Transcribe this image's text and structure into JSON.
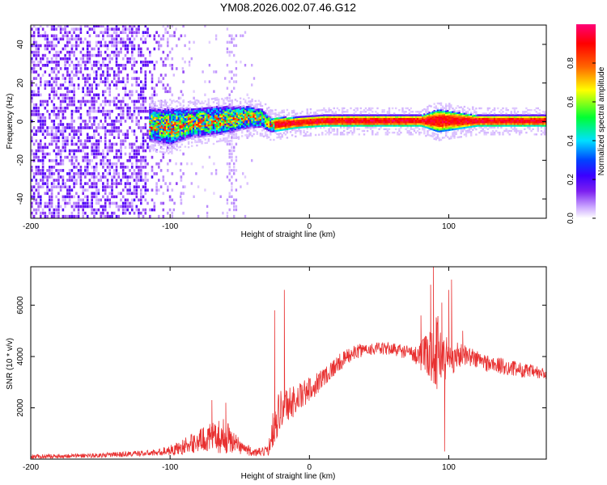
{
  "figure": {
    "title": "YM08.2026.002.07.46.G12"
  },
  "chart_data": [
    {
      "type": "heatmap",
      "panel": "spectrogram",
      "xlabel": "Height of straight line (km)",
      "ylabel": "Frequency (Hz)",
      "xlim": [
        -200,
        170
      ],
      "ylim": [
        -50,
        50
      ],
      "xticks": [
        "-200",
        "-100",
        "0",
        "100"
      ],
      "yticks": [
        "-40",
        "-20",
        "0",
        "20",
        "40"
      ],
      "colorbar": {
        "label": "Normalized spectral amplitude",
        "range": [
          0,
          1
        ],
        "ticks": [
          "0.0",
          "0.2",
          "0.4",
          "0.6",
          "0.8"
        ],
        "colormap": [
          "#ffffff",
          "#c9a4ff",
          "#7c1ff0",
          "#3a00ff",
          "#0044ff",
          "#00e0ff",
          "#00ff33",
          "#ffff00",
          "#ff6600",
          "#ff0000",
          "#ff0077"
        ]
      },
      "ridge": [
        {
          "x": -115,
          "freq": -2.0,
          "width": 9
        },
        {
          "x": -100,
          "freq": -3.0,
          "width": 10
        },
        {
          "x": -85,
          "freq": -1.0,
          "width": 8
        },
        {
          "x": -70,
          "freq": 0.0,
          "width": 8
        },
        {
          "x": -55,
          "freq": 1.0,
          "width": 7
        },
        {
          "x": -45,
          "freq": 2.0,
          "width": 6
        },
        {
          "x": -35,
          "freq": 1.5,
          "width": 5
        },
        {
          "x": -28,
          "freq": -2.0,
          "width": 4
        },
        {
          "x": -10,
          "freq": -1.0,
          "width": 3
        },
        {
          "x": 10,
          "freq": 0.0,
          "width": 3
        },
        {
          "x": 80,
          "freq": 0.0,
          "width": 3
        },
        {
          "x": 92,
          "freq": 0.0,
          "width": 6
        },
        {
          "x": 120,
          "freq": 0.0,
          "width": 3
        },
        {
          "x": 170,
          "freq": 0.0,
          "width": 3
        }
      ],
      "noise_region": {
        "x_start": -200,
        "x_end": -98,
        "density": "high"
      }
    },
    {
      "type": "line",
      "panel": "snr",
      "xlabel": "Height of straight line (km)",
      "ylabel": "SNR (10 * v/v)",
      "xlim": [
        -200,
        170
      ],
      "ylim": [
        0,
        7500
      ],
      "xticks": [
        "-200",
        "-100",
        "0",
        "100"
      ],
      "yticks": [
        "2000",
        "4000",
        "6000"
      ],
      "line_color": "#e83030",
      "envelope": [
        {
          "x": -200,
          "y": 100,
          "spread": 80
        },
        {
          "x": -150,
          "y": 150,
          "spread": 90
        },
        {
          "x": -110,
          "y": 250,
          "spread": 120
        },
        {
          "x": -95,
          "y": 400,
          "spread": 250
        },
        {
          "x": -75,
          "y": 800,
          "spread": 500
        },
        {
          "x": -60,
          "y": 900,
          "spread": 700
        },
        {
          "x": -50,
          "y": 500,
          "spread": 300
        },
        {
          "x": -40,
          "y": 250,
          "spread": 150
        },
        {
          "x": -30,
          "y": 300,
          "spread": 200
        },
        {
          "x": -25,
          "y": 1500,
          "spread": 900
        },
        {
          "x": -20,
          "y": 2000,
          "spread": 800
        },
        {
          "x": -10,
          "y": 2300,
          "spread": 600
        },
        {
          "x": 0,
          "y": 2700,
          "spread": 500
        },
        {
          "x": 10,
          "y": 3200,
          "spread": 400
        },
        {
          "x": 20,
          "y": 3700,
          "spread": 350
        },
        {
          "x": 30,
          "y": 4100,
          "spread": 300
        },
        {
          "x": 40,
          "y": 4300,
          "spread": 250
        },
        {
          "x": 60,
          "y": 4300,
          "spread": 250
        },
        {
          "x": 75,
          "y": 4100,
          "spread": 300
        },
        {
          "x": 85,
          "y": 4000,
          "spread": 900
        },
        {
          "x": 92,
          "y": 4200,
          "spread": 1500
        },
        {
          "x": 100,
          "y": 3900,
          "spread": 800
        },
        {
          "x": 110,
          "y": 4100,
          "spread": 400
        },
        {
          "x": 130,
          "y": 3700,
          "spread": 350
        },
        {
          "x": 150,
          "y": 3500,
          "spread": 300
        },
        {
          "x": 170,
          "y": 3300,
          "spread": 250
        }
      ],
      "spikes": [
        {
          "x": -70,
          "y": 2300
        },
        {
          "x": -60,
          "y": 2200
        },
        {
          "x": -25,
          "y": 5800
        },
        {
          "x": -18,
          "y": 6600
        },
        {
          "x": 80,
          "y": 5600
        },
        {
          "x": 87,
          "y": 6800
        },
        {
          "x": 89,
          "y": 7500
        },
        {
          "x": 95,
          "y": 6100
        },
        {
          "x": 97,
          "y": 300
        },
        {
          "x": 100,
          "y": 6600
        },
        {
          "x": 102,
          "y": 7000
        },
        {
          "x": 110,
          "y": 5000
        }
      ]
    }
  ]
}
